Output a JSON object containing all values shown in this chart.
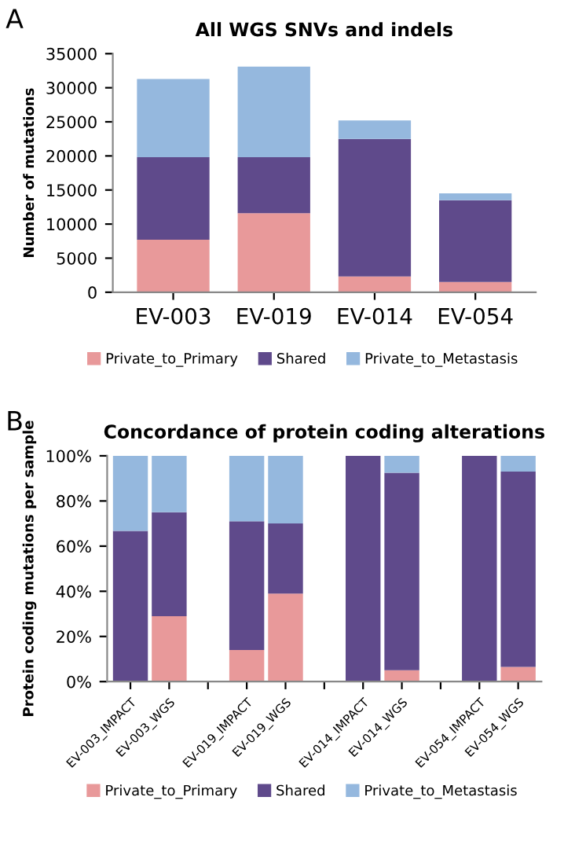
{
  "chart_data": [
    {
      "type": "bar",
      "title": "All WGS SNVs and indels",
      "ylabel": "Number of mutations",
      "annotations": [
        "A"
      ],
      "stacked": true,
      "categories": [
        "EV-003",
        "EV-019",
        "EV-014",
        "EV-054"
      ],
      "series": [
        {
          "name": "Private_to_Primary",
          "color": "#e8999a",
          "values": [
            7700,
            11600,
            2300,
            1500
          ]
        },
        {
          "name": "Shared",
          "color": "#5f4a8b",
          "values": [
            12100,
            8200,
            20200,
            12000
          ]
        },
        {
          "name": "Private_to_Metastasis",
          "color": "#95b8de",
          "values": [
            11500,
            13300,
            2700,
            1000
          ]
        }
      ],
      "ylim": [
        0,
        35000
      ],
      "yticks": [
        0,
        5000,
        10000,
        15000,
        20000,
        25000,
        30000,
        35000
      ],
      "grid": false,
      "legend": "bottom"
    },
    {
      "type": "bar",
      "title": "Concordance of protein coding alterations",
      "ylabel": "Protein coding mutations per sample",
      "annotations": [
        "B"
      ],
      "stacked": true,
      "categories": [
        "EV-003_IMPACT",
        "EV-003_WGS",
        null,
        "EV-019_IMPACT",
        "EV-019_WGS",
        null,
        "EV-014_IMPACT",
        "EV-014_WGS",
        null,
        "EV-054_IMPACT",
        "EV-054_WGS"
      ],
      "series": [
        {
          "name": "Private_to_Primary",
          "color": "#e8999a",
          "values": [
            0,
            29,
            null,
            14,
            39,
            null,
            0,
            5,
            null,
            0,
            6.5
          ]
        },
        {
          "name": "Shared",
          "color": "#5f4a8b",
          "values": [
            66.7,
            46,
            null,
            57,
            31,
            null,
            100,
            87.5,
            null,
            100,
            86.5
          ]
        },
        {
          "name": "Private_to_Metastasis",
          "color": "#95b8de",
          "values": [
            33.3,
            25,
            null,
            29,
            30,
            null,
            0,
            7.5,
            null,
            0,
            7
          ]
        }
      ],
      "ylim": [
        0,
        100
      ],
      "yticks": [
        {
          "value": 0,
          "label": "0%"
        },
        {
          "value": 20,
          "label": "20%"
        },
        {
          "value": 40,
          "label": "40%"
        },
        {
          "value": 60,
          "label": "60%"
        },
        {
          "value": 80,
          "label": "80%"
        },
        {
          "value": 100,
          "label": "100%"
        }
      ],
      "grid": false,
      "legend": "bottom"
    }
  ]
}
